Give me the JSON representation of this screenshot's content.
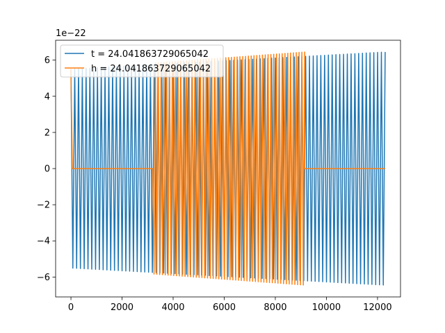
{
  "chart_data": {
    "type": "line",
    "title": "",
    "xlabel": "",
    "ylabel": "",
    "y_offset_text": "1e−22",
    "y_scale_exponent": -22,
    "xlim": [
      -600,
      12900
    ],
    "ylim": [
      -7.1,
      7.1
    ],
    "x_ticks": [
      0,
      2000,
      4000,
      6000,
      8000,
      10000,
      12000
    ],
    "x_tick_labels": [
      "0",
      "2000",
      "4000",
      "6000",
      "8000",
      "10000",
      "12000"
    ],
    "y_ticks": [
      -6,
      -4,
      -2,
      0,
      2,
      4,
      6
    ],
    "y_tick_labels": [
      "−6",
      "−4",
      "−2",
      "0",
      "2",
      "4",
      "6"
    ],
    "grid": false,
    "legend_position": "upper-left",
    "series": [
      {
        "name": "t = 24.041863729065042",
        "color": "#1f77b4",
        "cycles": 83,
        "x_start": 0,
        "x_end": 12300,
        "amp_start": 5.5,
        "amp_end": 6.45,
        "segments": [
          [
            0,
            12300
          ]
        ]
      },
      {
        "name": "h = 24.041863729065042",
        "color": "#ff7f0e",
        "cycles": 83,
        "x_start": 0,
        "x_end": 9150,
        "amp_start": 5.5,
        "amp_end": 6.45,
        "segments": [
          [
            0,
            50
          ],
          [
            3200,
            9150
          ]
        ],
        "flat_after_x": 9150,
        "flat_x_end": 12300
      }
    ]
  }
}
